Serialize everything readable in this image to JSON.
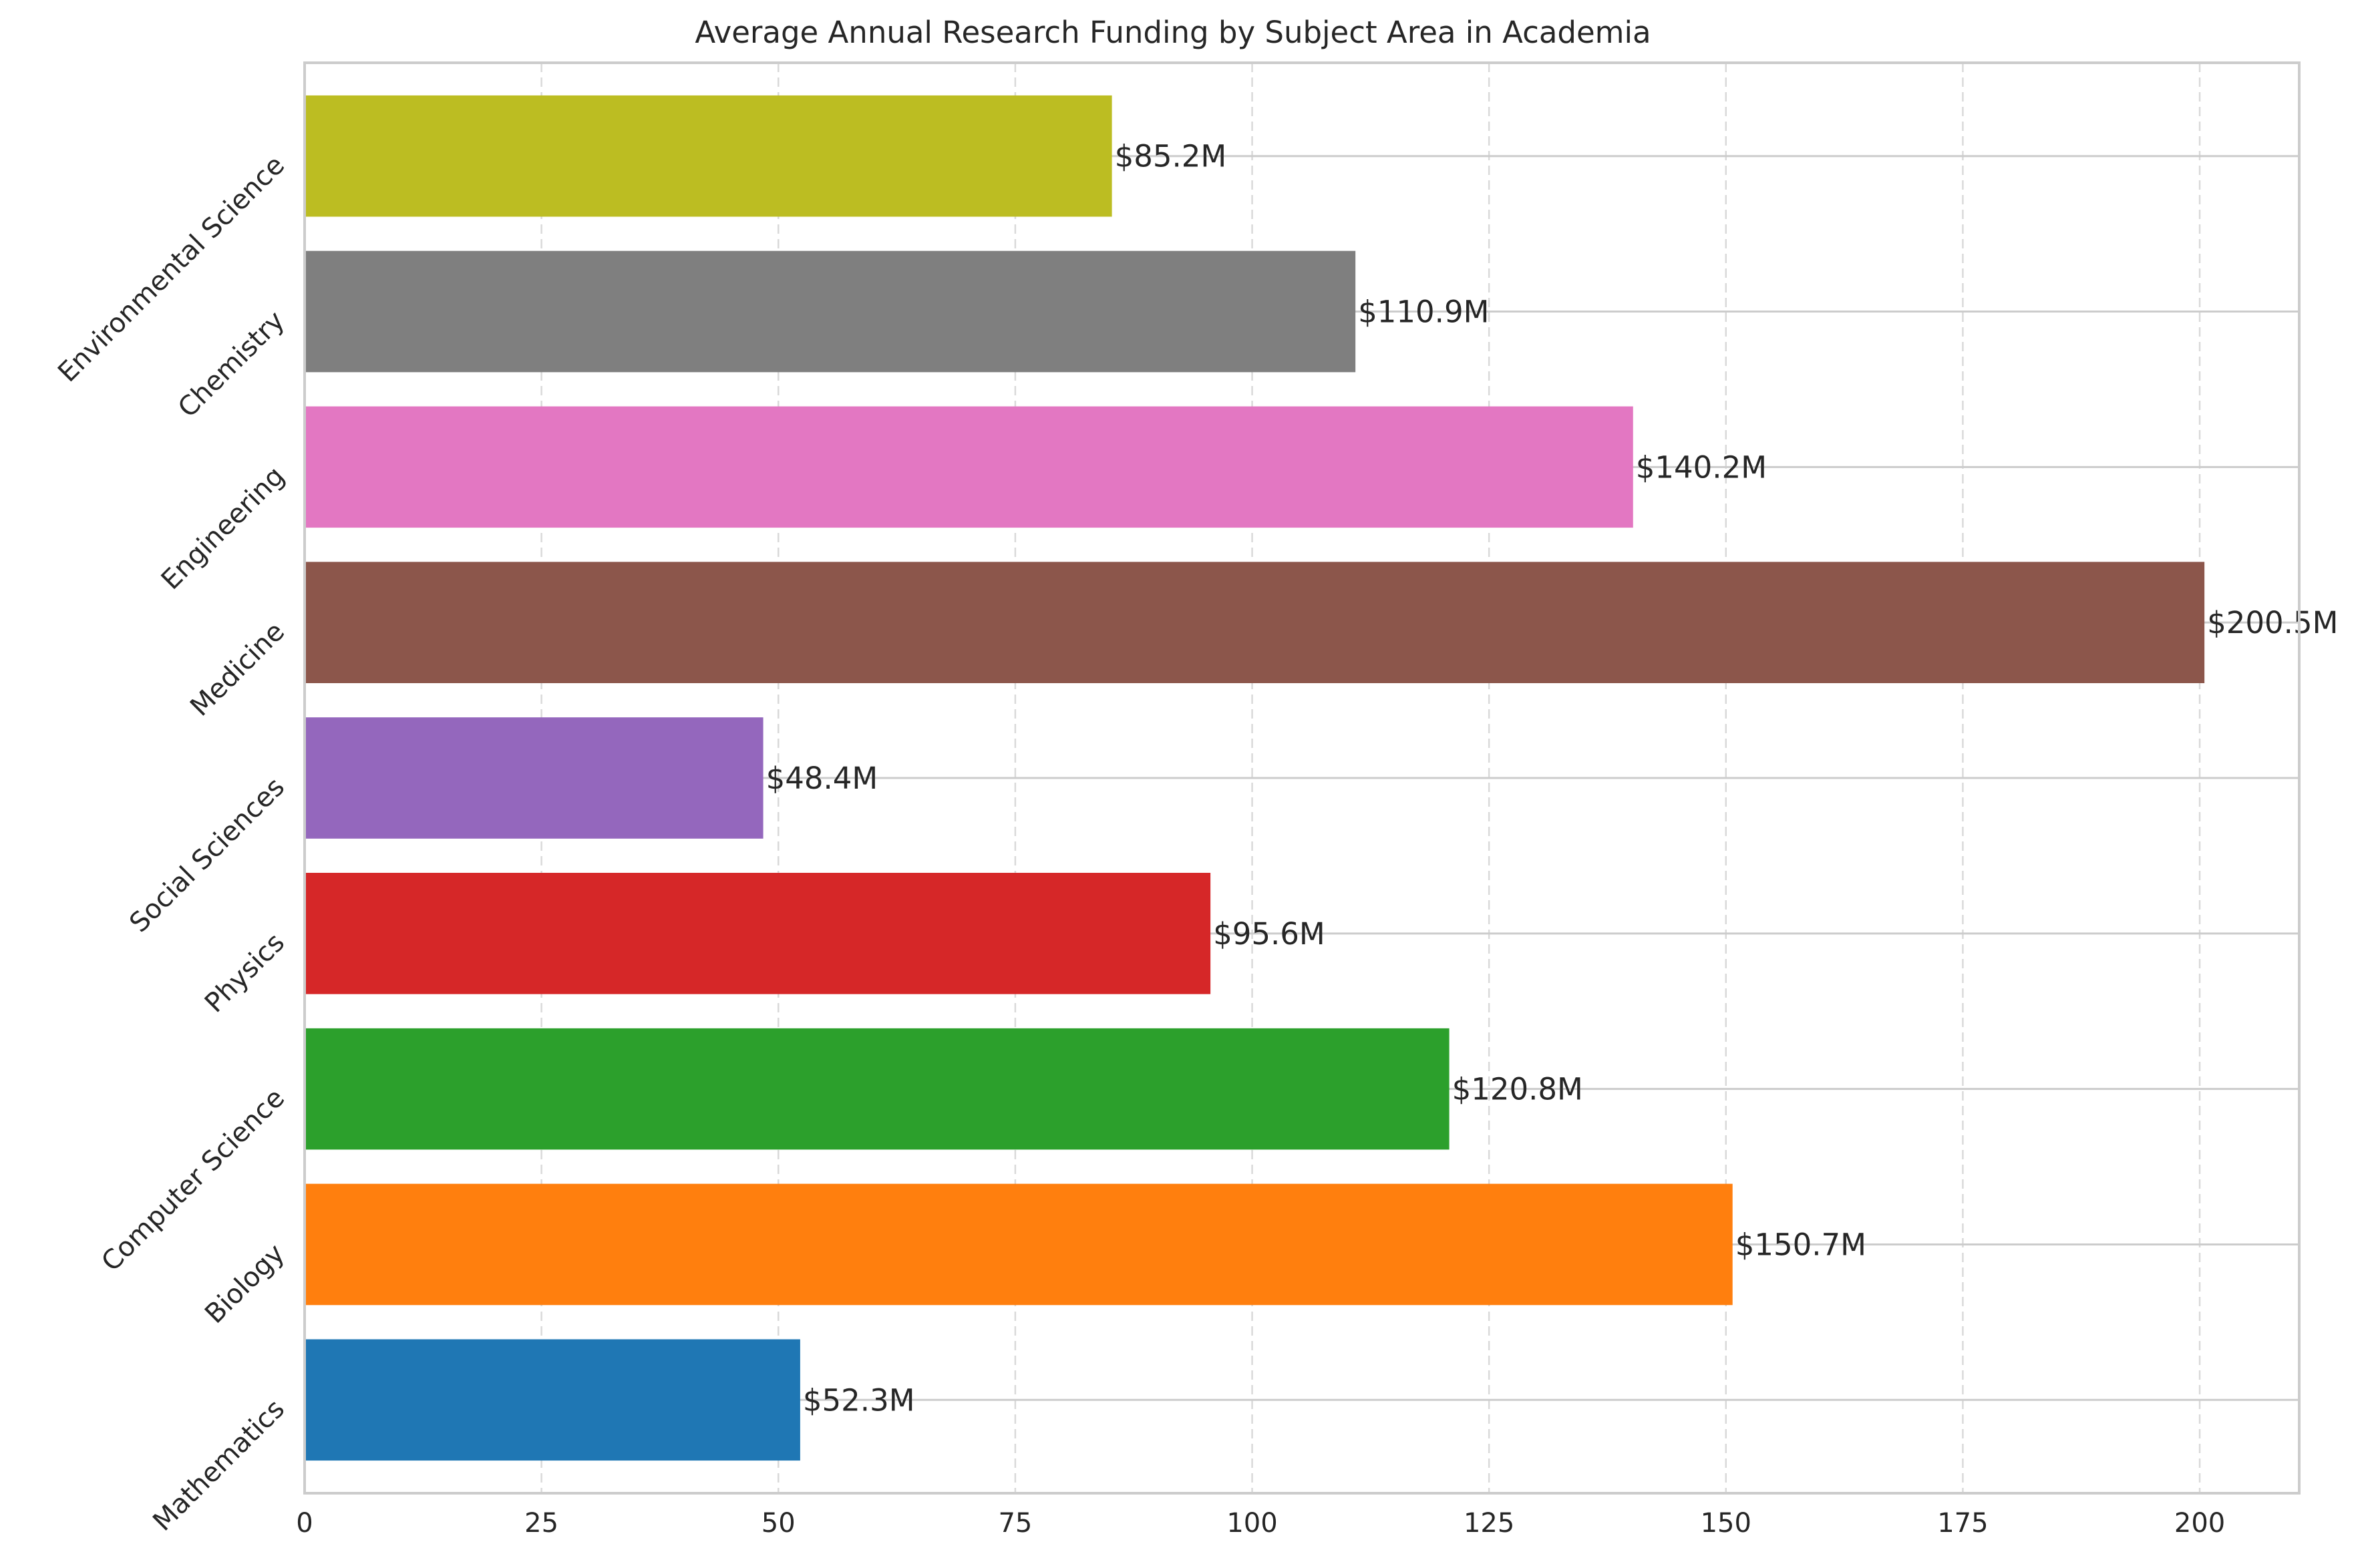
{
  "chart_data": {
    "type": "bar",
    "orientation": "horizontal",
    "title": "Average Annual Research Funding by Subject Area in Academia",
    "xlabel": "",
    "ylabel": "",
    "categories": [
      "Mathematics",
      "Biology",
      "Computer Science",
      "Physics",
      "Social Sciences",
      "Medicine",
      "Engineering",
      "Chemistry",
      "Environmental Science"
    ],
    "values": [
      52.3,
      150.7,
      120.8,
      95.6,
      48.4,
      200.5,
      140.2,
      110.9,
      85.2
    ],
    "value_labels": [
      "$52.3M",
      "$150.7M",
      "$120.8M",
      "$95.6M",
      "$48.4M",
      "$200.5M",
      "$140.2M",
      "$110.9M",
      "$85.2M"
    ],
    "colors": [
      "#1f77b4",
      "#ff7f0e",
      "#2ca02c",
      "#d62728",
      "#9467bd",
      "#8c564b",
      "#e377c2",
      "#7f7f7f",
      "#bcbd22"
    ],
    "xlim": [
      0,
      210.5
    ],
    "xticks": [
      0,
      25,
      50,
      75,
      100,
      125,
      150,
      175,
      200
    ],
    "xtick_labels": [
      "0",
      "25",
      "50",
      "75",
      "100",
      "125",
      "150",
      "175",
      "200"
    ],
    "grid": true,
    "legend": "none"
  }
}
